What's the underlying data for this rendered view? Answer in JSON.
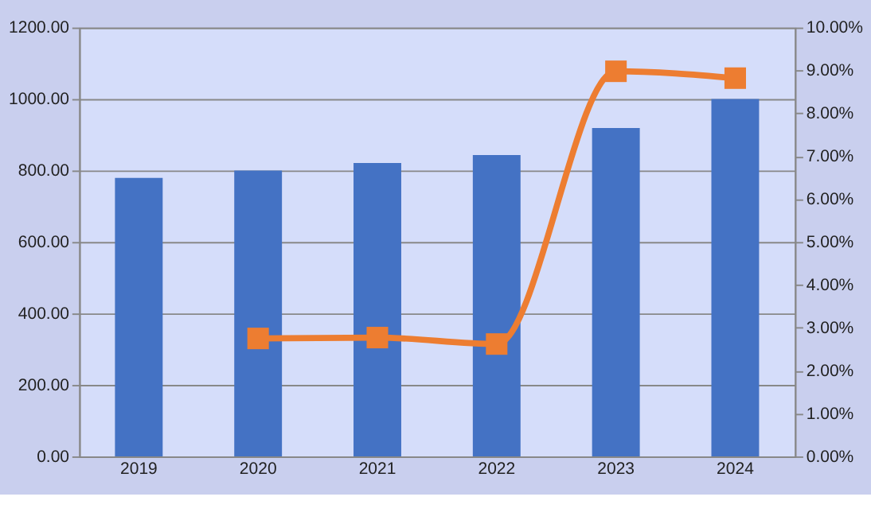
{
  "chart_data": {
    "type": "bar",
    "categories": [
      "2019",
      "2020",
      "2021",
      "2022",
      "2023",
      "2024"
    ],
    "series": [
      {
        "color": "#4472c4",
        "values": [
          779,
          800,
          821,
          843,
          919,
          1000
        ]
      },
      {
        "type": "line",
        "axis": "y2",
        "color": "#ed7d31",
        "marker": "square",
        "values": [
          null,
          2.75,
          2.77,
          2.62,
          8.98,
          8.82
        ]
      }
    ],
    "ylim": [
      0,
      1200
    ],
    "yticks": [
      {
        "value": 0,
        "label": "0.00"
      },
      {
        "value": 200,
        "label": "200.00"
      },
      {
        "value": 400,
        "label": "400.00"
      },
      {
        "value": 600,
        "label": "600.00"
      },
      {
        "value": 800,
        "label": "800.00"
      },
      {
        "value": 1000,
        "label": "1000.00"
      },
      {
        "value": 1200,
        "label": "1200.00"
      }
    ],
    "y2lim": [
      0,
      10
    ],
    "y2ticks": [
      {
        "value": 0,
        "label": "0.00%"
      },
      {
        "value": 1,
        "label": "1.00%"
      },
      {
        "value": 2,
        "label": "2.00%"
      },
      {
        "value": 3,
        "label": "3.00%"
      },
      {
        "value": 4,
        "label": "4.00%"
      },
      {
        "value": 5,
        "label": "5.00%"
      },
      {
        "value": 6,
        "label": "6.00%"
      },
      {
        "value": 7,
        "label": "7.00%"
      },
      {
        "value": 8,
        "label": "8.00%"
      },
      {
        "value": 9,
        "label": "9.00%"
      },
      {
        "value": 10,
        "label": "10.00%"
      }
    ],
    "grid": "y"
  }
}
